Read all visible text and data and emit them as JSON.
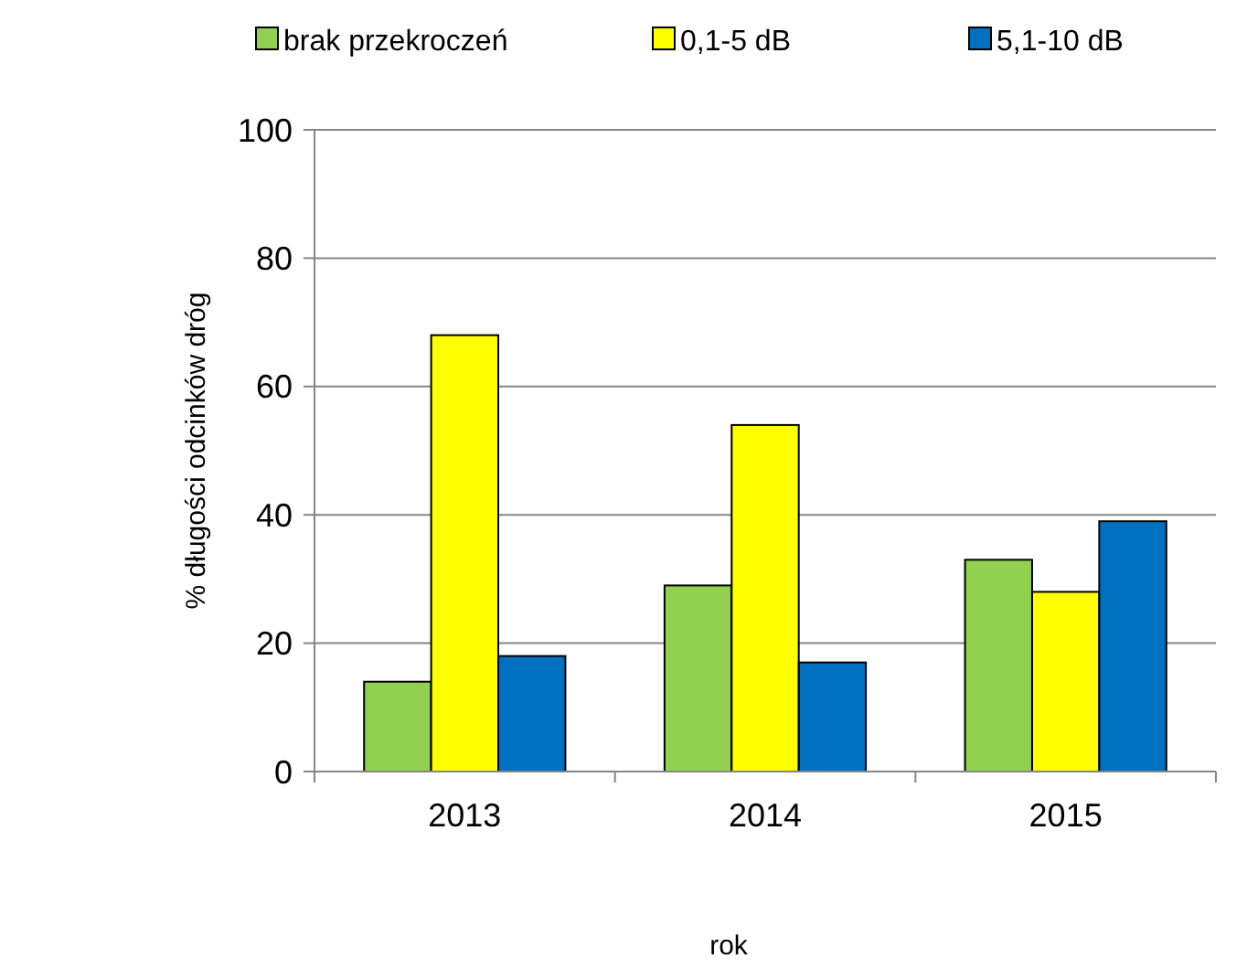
{
  "chart_data": {
    "type": "bar",
    "categories": [
      "2013",
      "2014",
      "2015"
    ],
    "series": [
      {
        "name": "brak przekroczeń",
        "color": "#92d050",
        "values": [
          14,
          29,
          33
        ]
      },
      {
        "name": "0,1-5 dB",
        "color": "#ffff00",
        "values": [
          68,
          54,
          28
        ]
      },
      {
        "name": "5,1-10 dB",
        "color": "#0070c0",
        "values": [
          18,
          17,
          39
        ]
      }
    ],
    "xlabel": "rok",
    "ylabel": "% długości odcinków dróg",
    "ylim": [
      0,
      100
    ],
    "yticks": [
      0,
      20,
      40,
      60,
      80,
      100
    ],
    "grid": "y",
    "legend": "top"
  }
}
